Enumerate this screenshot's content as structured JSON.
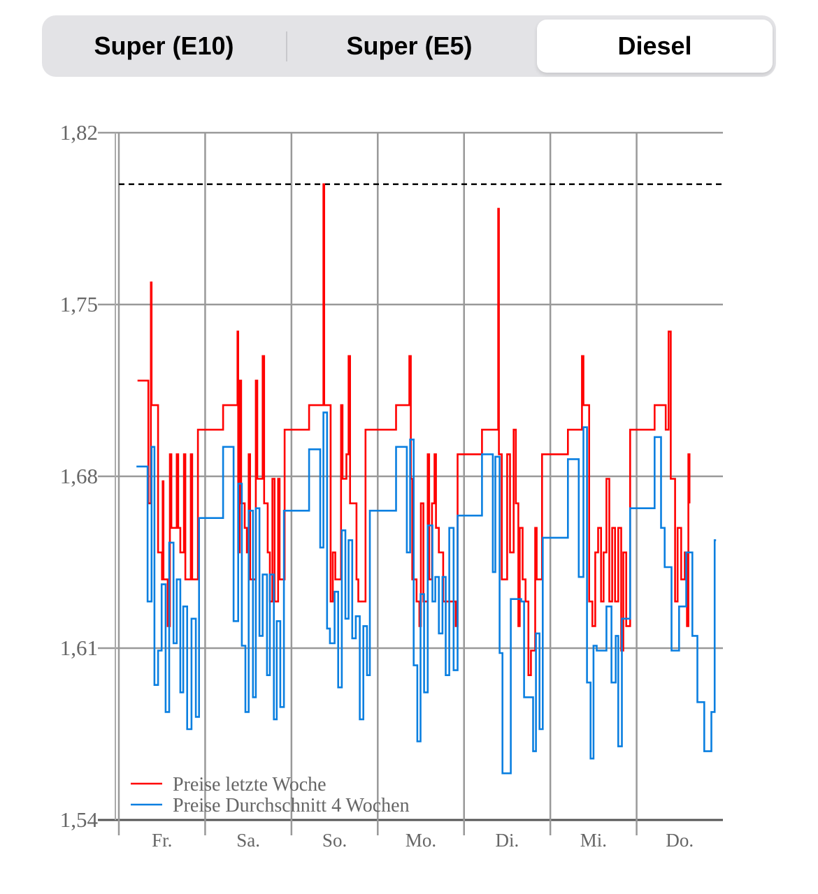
{
  "tabs": [
    {
      "label": "Super (E10)",
      "selected": false
    },
    {
      "label": "Super (E5)",
      "selected": false
    },
    {
      "label": "Diesel",
      "selected": true
    }
  ],
  "chart_data": {
    "type": "line",
    "step": true,
    "x_unit": "hours from start of week",
    "xlim": [
      0,
      168
    ],
    "ylim": [
      1.54,
      1.82
    ],
    "y_ticks": [
      "1,82",
      "1,75",
      "1,68",
      "1,61",
      "1,54"
    ],
    "y_tick_values": [
      1.82,
      1.75,
      1.68,
      1.61,
      1.54
    ],
    "x_tick_labels": [
      "Fr.",
      "Sa.",
      "So.",
      "Mo.",
      "Di.",
      "Mi.",
      "Do."
    ],
    "grid": true,
    "legend_position": "bottom-left",
    "reference_line": {
      "value": 1.799,
      "style": "dashed",
      "color": "#000000"
    },
    "series": [
      {
        "name": "Preise letzte Woche",
        "color": "#ff0000",
        "end_x": 158.7,
        "points": [
          [
            5.2,
            1.719
          ],
          [
            8.2,
            1.669
          ],
          [
            8.9,
            1.759
          ],
          [
            9.1,
            1.709
          ],
          [
            10.9,
            1.649
          ],
          [
            12.0,
            1.638
          ],
          [
            12.2,
            1.678
          ],
          [
            12.4,
            1.638
          ],
          [
            13.6,
            1.619
          ],
          [
            14.2,
            1.689
          ],
          [
            14.6,
            1.659
          ],
          [
            16.1,
            1.689
          ],
          [
            16.5,
            1.659
          ],
          [
            17.1,
            1.649
          ],
          [
            18.1,
            1.689
          ],
          [
            18.5,
            1.638
          ],
          [
            20.0,
            1.689
          ],
          [
            20.4,
            1.638
          ],
          [
            22.0,
            1.699
          ],
          [
            29.0,
            1.709
          ],
          [
            33.0,
            1.739
          ],
          [
            33.2,
            1.649
          ],
          [
            33.6,
            1.719
          ],
          [
            34.0,
            1.669
          ],
          [
            35.0,
            1.659
          ],
          [
            35.6,
            1.649
          ],
          [
            36.1,
            1.689
          ],
          [
            36.5,
            1.638
          ],
          [
            38.1,
            1.719
          ],
          [
            38.5,
            1.679
          ],
          [
            40.0,
            1.729
          ],
          [
            40.4,
            1.669
          ],
          [
            41.4,
            1.649
          ],
          [
            42.0,
            1.629
          ],
          [
            42.7,
            1.679
          ],
          [
            43.3,
            1.629
          ],
          [
            44.3,
            1.679
          ],
          [
            44.7,
            1.638
          ],
          [
            46.1,
            1.699
          ],
          [
            52.9,
            1.709
          ],
          [
            56.9,
            1.799
          ],
          [
            57.1,
            1.709
          ],
          [
            58.9,
            1.629
          ],
          [
            59.5,
            1.649
          ],
          [
            60.2,
            1.638
          ],
          [
            61.8,
            1.709
          ],
          [
            62.2,
            1.679
          ],
          [
            63.3,
            1.689
          ],
          [
            63.9,
            1.729
          ],
          [
            64.3,
            1.669
          ],
          [
            66.1,
            1.638
          ],
          [
            66.6,
            1.629
          ],
          [
            68.6,
            1.699
          ],
          [
            77.1,
            1.709
          ],
          [
            80.8,
            1.729
          ],
          [
            81.2,
            1.679
          ],
          [
            81.6,
            1.638
          ],
          [
            82.8,
            1.629
          ],
          [
            83.6,
            1.619
          ],
          [
            84.0,
            1.669
          ],
          [
            84.7,
            1.629
          ],
          [
            85.9,
            1.689
          ],
          [
            86.3,
            1.638
          ],
          [
            87.1,
            1.669
          ],
          [
            87.8,
            1.689
          ],
          [
            88.2,
            1.659
          ],
          [
            89.0,
            1.649
          ],
          [
            90.2,
            1.629
          ],
          [
            93.7,
            1.619
          ],
          [
            94.2,
            1.689
          ],
          [
            101.0,
            1.699
          ],
          [
            105.5,
            1.789
          ],
          [
            105.7,
            1.689
          ],
          [
            106.5,
            1.638
          ],
          [
            108.0,
            1.689
          ],
          [
            108.8,
            1.649
          ],
          [
            109.8,
            1.699
          ],
          [
            110.4,
            1.669
          ],
          [
            111.1,
            1.619
          ],
          [
            111.5,
            1.659
          ],
          [
            112.3,
            1.638
          ],
          [
            113.1,
            1.629
          ],
          [
            113.9,
            1.599
          ],
          [
            114.6,
            1.609
          ],
          [
            115.8,
            1.659
          ],
          [
            116.2,
            1.638
          ],
          [
            117.7,
            1.689
          ],
          [
            124.9,
            1.699
          ],
          [
            128.8,
            1.729
          ],
          [
            129.2,
            1.709
          ],
          [
            130.8,
            1.629
          ],
          [
            131.7,
            1.619
          ],
          [
            132.5,
            1.649
          ],
          [
            133.3,
            1.659
          ],
          [
            134.1,
            1.629
          ],
          [
            134.8,
            1.649
          ],
          [
            135.6,
            1.679
          ],
          [
            136.4,
            1.629
          ],
          [
            137.2,
            1.659
          ],
          [
            138.0,
            1.629
          ],
          [
            138.9,
            1.659
          ],
          [
            139.7,
            1.609
          ],
          [
            140.3,
            1.649
          ],
          [
            141.1,
            1.619
          ],
          [
            142.2,
            1.699
          ],
          [
            149.0,
            1.709
          ],
          [
            152.1,
            1.699
          ],
          [
            152.9,
            1.739
          ],
          [
            153.5,
            1.679
          ],
          [
            154.7,
            1.629
          ],
          [
            155.4,
            1.659
          ],
          [
            156.4,
            1.638
          ],
          [
            157.4,
            1.649
          ],
          [
            158.0,
            1.619
          ],
          [
            158.4,
            1.689
          ],
          [
            158.7,
            1.669
          ]
        ]
      },
      {
        "name": "Preise Durchschnitt 4 Wochen",
        "color": "#0a7fe0",
        "end_x": 166.1,
        "points": [
          [
            4.9,
            1.684
          ],
          [
            8.0,
            1.629
          ],
          [
            9.1,
            1.692
          ],
          [
            9.9,
            1.595
          ],
          [
            10.9,
            1.609
          ],
          [
            11.9,
            1.636
          ],
          [
            13.0,
            1.584
          ],
          [
            14.0,
            1.653
          ],
          [
            15.2,
            1.612
          ],
          [
            16.1,
            1.638
          ],
          [
            17.1,
            1.592
          ],
          [
            17.9,
            1.627
          ],
          [
            19.0,
            1.577
          ],
          [
            20.2,
            1.622
          ],
          [
            21.4,
            1.582
          ],
          [
            22.3,
            1.663
          ],
          [
            29.0,
            1.692
          ],
          [
            31.9,
            1.621
          ],
          [
            33.2,
            1.677
          ],
          [
            34.2,
            1.611
          ],
          [
            35.2,
            1.584
          ],
          [
            36.1,
            1.666
          ],
          [
            37.3,
            1.59
          ],
          [
            38.1,
            1.667
          ],
          [
            39.1,
            1.615
          ],
          [
            40.0,
            1.64
          ],
          [
            41.2,
            1.599
          ],
          [
            42.0,
            1.64
          ],
          [
            43.1,
            1.581
          ],
          [
            43.9,
            1.621
          ],
          [
            44.9,
            1.586
          ],
          [
            45.9,
            1.666
          ],
          [
            52.9,
            1.691
          ],
          [
            56.0,
            1.651
          ],
          [
            56.9,
            1.706
          ],
          [
            57.9,
            1.618
          ],
          [
            58.7,
            1.612
          ],
          [
            60.0,
            1.633
          ],
          [
            61.0,
            1.594
          ],
          [
            62.0,
            1.658
          ],
          [
            63.0,
            1.622
          ],
          [
            63.9,
            1.654
          ],
          [
            64.9,
            1.614
          ],
          [
            65.9,
            1.623
          ],
          [
            67.0,
            1.581
          ],
          [
            68.0,
            1.619
          ],
          [
            69.0,
            1.599
          ],
          [
            69.8,
            1.666
          ],
          [
            77.1,
            1.692
          ],
          [
            80.1,
            1.649
          ],
          [
            81.0,
            1.695
          ],
          [
            82.0,
            1.603
          ],
          [
            83.0,
            1.572
          ],
          [
            83.9,
            1.632
          ],
          [
            84.9,
            1.592
          ],
          [
            85.9,
            1.66
          ],
          [
            87.2,
            1.629
          ],
          [
            88.0,
            1.639
          ],
          [
            89.0,
            1.616
          ],
          [
            90.0,
            1.639
          ],
          [
            90.9,
            1.599
          ],
          [
            91.9,
            1.659
          ],
          [
            93.1,
            1.601
          ],
          [
            94.2,
            1.664
          ],
          [
            101.0,
            1.689
          ],
          [
            104.0,
            1.641
          ],
          [
            104.7,
            1.688
          ],
          [
            105.9,
            1.608
          ],
          [
            106.7,
            1.559
          ],
          [
            109.0,
            1.63
          ],
          [
            111.9,
            1.629
          ],
          [
            112.7,
            1.59
          ],
          [
            115.2,
            1.568
          ],
          [
            116.0,
            1.616
          ],
          [
            117.0,
            1.577
          ],
          [
            117.9,
            1.655
          ],
          [
            124.9,
            1.687
          ],
          [
            127.9,
            1.639
          ],
          [
            129.2,
            1.7
          ],
          [
            130.2,
            1.596
          ],
          [
            131.2,
            1.565
          ],
          [
            132.0,
            1.611
          ],
          [
            132.9,
            1.609
          ],
          [
            135.6,
            1.627
          ],
          [
            137.0,
            1.596
          ],
          [
            138.2,
            1.615
          ],
          [
            138.9,
            1.57
          ],
          [
            139.9,
            1.622
          ],
          [
            142.2,
            1.667
          ],
          [
            149.0,
            1.696
          ],
          [
            150.8,
            1.659
          ],
          [
            151.8,
            1.643
          ],
          [
            153.7,
            1.609
          ],
          [
            155.8,
            1.627
          ],
          [
            157.8,
            1.649
          ],
          [
            159.5,
            1.615
          ],
          [
            160.9,
            1.588
          ],
          [
            162.8,
            1.568
          ],
          [
            164.8,
            1.584
          ],
          [
            165.7,
            1.654
          ]
        ]
      }
    ]
  }
}
